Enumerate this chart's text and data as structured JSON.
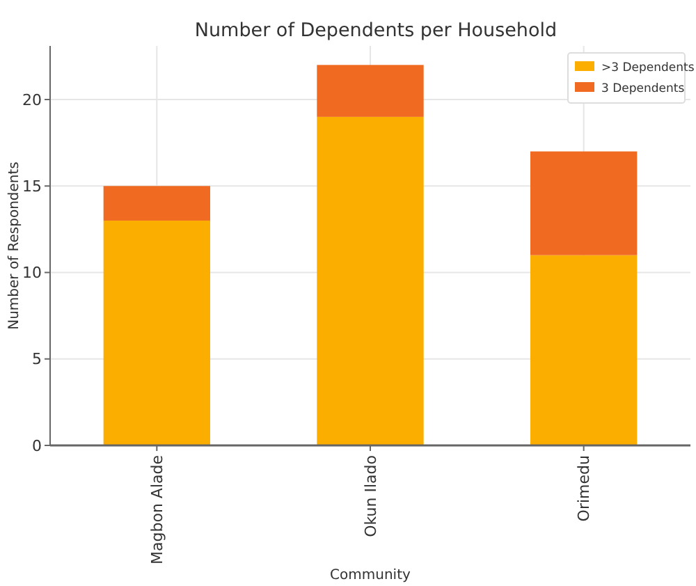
{
  "chart_data": {
    "type": "bar",
    "title": "Number of Dependents per Household",
    "xlabel": "Community",
    "ylabel": "Number of Respondents",
    "categories": [
      "Magbon Alade",
      "Okun Ilado",
      "Orimedu"
    ],
    "stacked": true,
    "series": [
      {
        "name": ">3 Dependents",
        "color": "#fbae00",
        "values": [
          13,
          19,
          11
        ]
      },
      {
        "name": "3 Dependents",
        "color": "#f06a22",
        "values": [
          2,
          3,
          6
        ]
      }
    ],
    "ylim": [
      0,
      23.1
    ],
    "yticks": [
      0,
      5,
      10,
      15,
      20
    ],
    "grid": true,
    "legend": "top right"
  }
}
